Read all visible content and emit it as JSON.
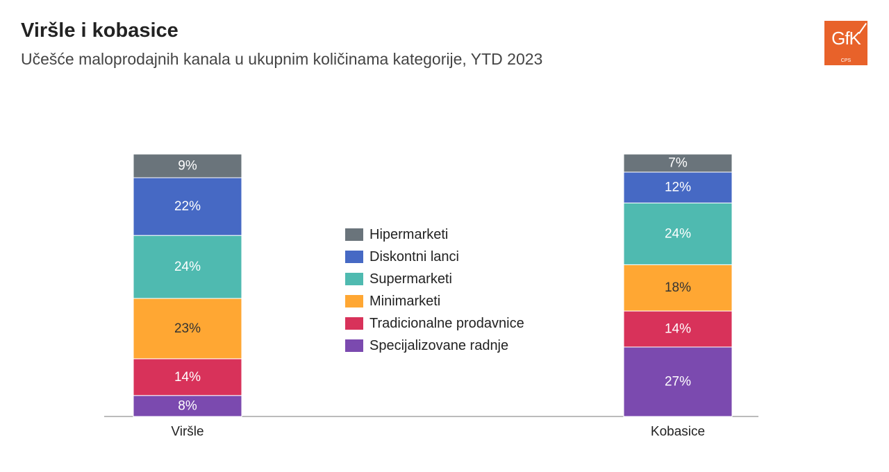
{
  "title": "Viršle i kobasice",
  "subtitle": "Učešće maloprodajnih kanala u ukupnim količinama kategorije, YTD 2023",
  "logo": {
    "text": "GfK",
    "sub": "CPS",
    "color": "#e8622a"
  },
  "chart_data": {
    "type": "bar",
    "stacked": true,
    "categories": [
      "Viršle",
      "Kobasice"
    ],
    "series": [
      {
        "name": "Specijalizovane radnje",
        "color": "#7b4aaf",
        "values": [
          8,
          27
        ],
        "labels": [
          "8%",
          "27%"
        ]
      },
      {
        "name": "Tradicionalne prodavnice",
        "color": "#d8325a",
        "values": [
          14,
          14
        ],
        "labels": [
          "14%",
          "14%"
        ]
      },
      {
        "name": "Minimarketi",
        "color": "#ffa733",
        "values": [
          23,
          18
        ],
        "labels": [
          "23%",
          "18%"
        ]
      },
      {
        "name": "Supermarketi",
        "color": "#4fbab0",
        "values": [
          24,
          24
        ],
        "labels": [
          "24%",
          "24%"
        ]
      },
      {
        "name": "Diskontni lanci",
        "color": "#4669c4",
        "values": [
          22,
          12
        ],
        "labels": [
          "22%",
          "12%"
        ]
      },
      {
        "name": "Hipermarketi",
        "color": "#6a747b",
        "values": [
          9,
          7
        ],
        "labels": [
          "9%",
          "7%"
        ]
      }
    ],
    "legend": [
      "Hipermarketi",
      "Diskontni lanci",
      "Supermarketi",
      "Minimarketi",
      "Tradicionalne prodavnice",
      "Specijalizovane radnje"
    ],
    "ylim": [
      0,
      100
    ],
    "grid": false,
    "legend_position": "center"
  }
}
